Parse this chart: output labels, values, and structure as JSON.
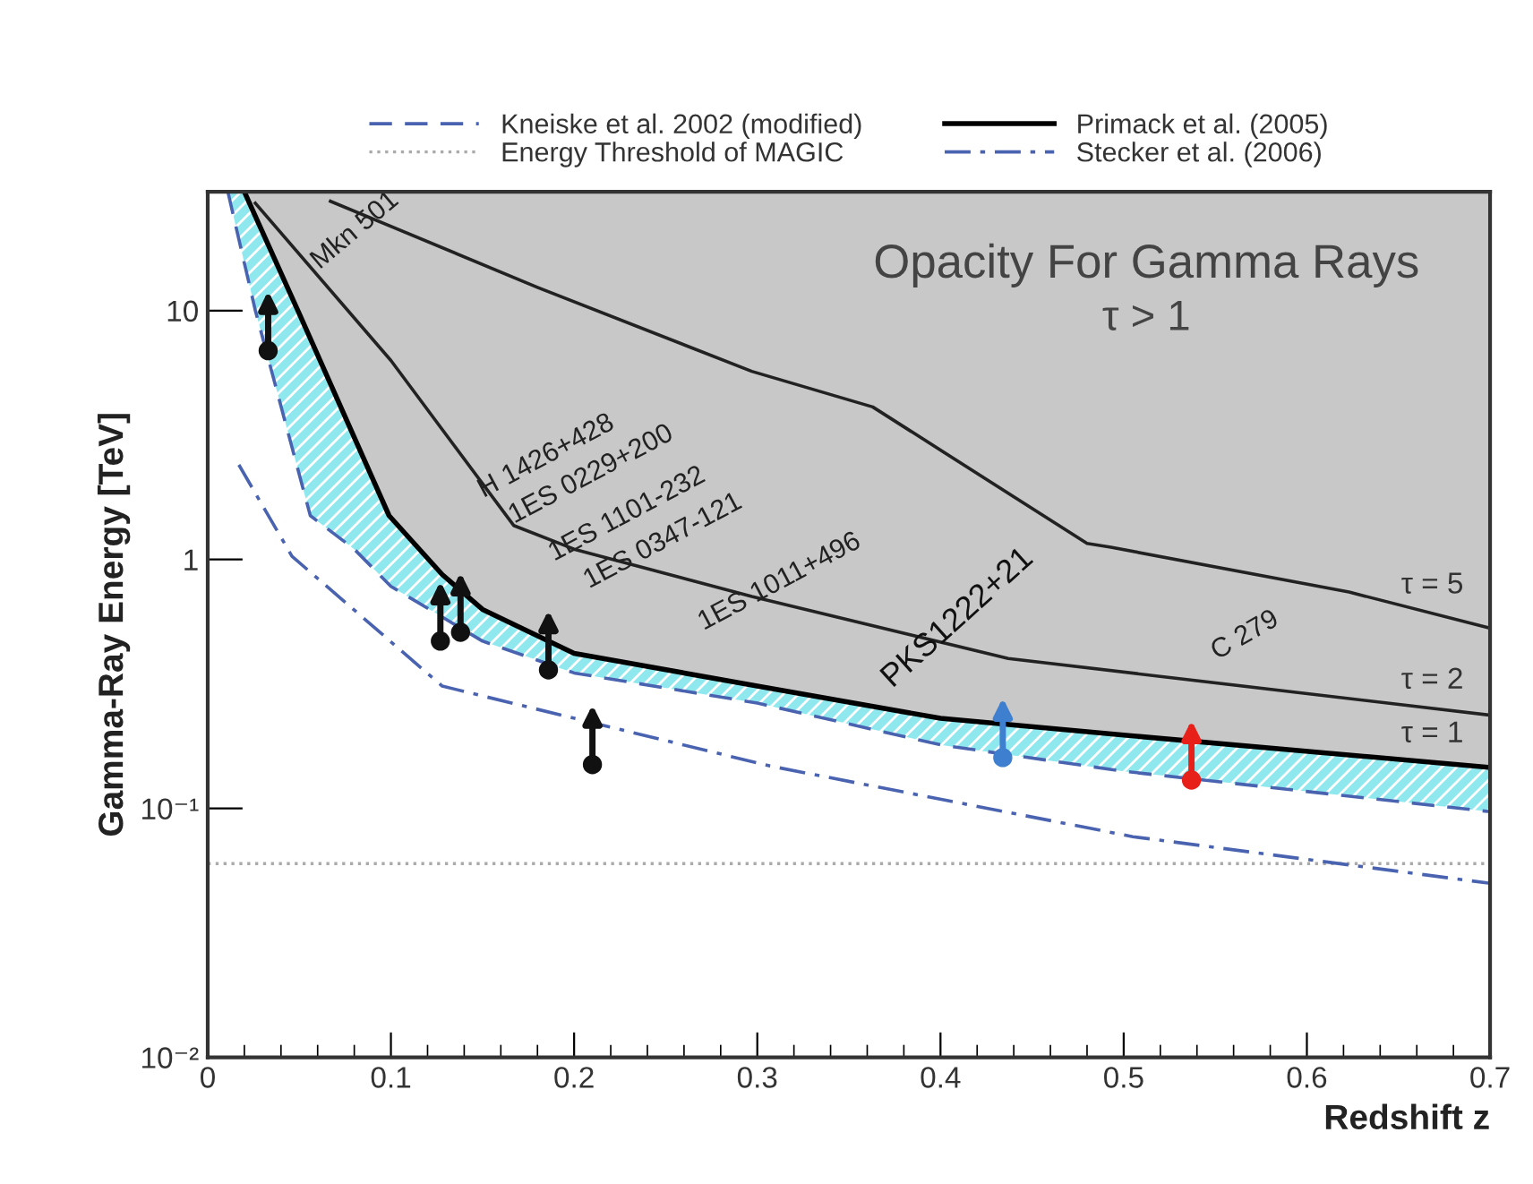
{
  "chart_data": {
    "type": "line",
    "xlabel": "Redshift z",
    "ylabel": "Gamma-Ray Energy [TeV]",
    "xlim": [
      0,
      0.7
    ],
    "xticks": [
      0,
      0.1,
      0.2,
      0.3,
      0.4,
      0.5,
      0.6,
      0.7
    ],
    "ylim": [
      0.01,
      30
    ],
    "log": "y",
    "yticks": [
      {
        "value": 0.01,
        "label": "10⁻²"
      },
      {
        "value": 0.1,
        "label": "10⁻¹"
      },
      1,
      10
    ],
    "grid": false,
    "legend": "top",
    "series": [
      {
        "name": "Kneiske et al. 2002 (modified)",
        "line_style": "dashed",
        "color": "#4a63b0",
        "x": [
          0.011,
          0.026,
          0.056,
          0.08,
          0.1,
          0.15,
          0.2,
          0.3,
          0.4,
          0.5,
          0.7
        ],
        "values": [
          30,
          10,
          1.5,
          1.1,
          0.78,
          0.47,
          0.35,
          0.265,
          0.18,
          0.141,
          0.097
        ]
      },
      {
        "name": "Primack et al. (2005)",
        "line_style": "solid",
        "color": "#000000",
        "x": [
          0.02,
          0.05,
          0.099,
          0.128,
          0.15,
          0.2,
          0.3,
          0.4,
          0.5,
          0.7
        ],
        "values": [
          30,
          9.7,
          1.5,
          0.87,
          0.63,
          0.42,
          0.31,
          0.23,
          0.197,
          0.146
        ]
      },
      {
        "name": "Stecker et al. (2006)",
        "line_style": "dashdot",
        "color": "#4a63b0",
        "x": [
          0.017,
          0.046,
          0.128,
          0.307,
          0.505,
          0.7
        ],
        "values": [
          2.4,
          1.03,
          0.31,
          0.148,
          0.077,
          0.05
        ]
      },
      {
        "line_style": "solid",
        "color": "#222222",
        "x": [
          0.026,
          0.1,
          0.167,
          0.2,
          0.297,
          0.437,
          0.7
        ],
        "values": [
          27,
          6.3,
          1.37,
          1.1,
          0.71,
          0.4,
          0.237
        ]
      },
      {
        "line_style": "solid",
        "color": "#222222",
        "x": [
          0.067,
          0.18,
          0.297,
          0.363,
          0.48,
          0.493,
          0.623,
          0.7
        ],
        "values": [
          27.5,
          12.4,
          5.7,
          4.1,
          1.16,
          1.12,
          0.74,
          0.53
        ]
      },
      {
        "type": "scatter",
        "marker": "circle",
        "color": "#111111",
        "x": [
          0.033,
          0.127,
          0.138,
          0.186,
          0.21
        ],
        "values": [
          6.9,
          0.47,
          0.51,
          0.36,
          0.15
        ]
      },
      {
        "type": "scatter",
        "marker": "circle",
        "color": "#3f7fcf",
        "x": [
          0.434
        ],
        "values": [
          0.16
        ]
      },
      {
        "type": "scatter",
        "marker": "circle",
        "color": "#e8201a",
        "x": [
          0.537
        ],
        "values": [
          0.13
        ]
      }
    ],
    "ref_lines": [
      {
        "axis": "y",
        "value": 0.06,
        "label": "Energy Threshold of MAGIC",
        "color": "#aaaaaa",
        "line_style": "dotted"
      }
    ],
    "annotations": [
      "Opacity For Gamma Rays",
      "τ > 1",
      "Mkn 501",
      "H 1426+428",
      "1ES 0229+200",
      "1ES 1101-232",
      "1ES 0347-121",
      "1ES 1011+496",
      "PKS1222+21",
      "C 279",
      "τ = 5",
      "τ = 2",
      "τ = 1"
    ]
  }
}
